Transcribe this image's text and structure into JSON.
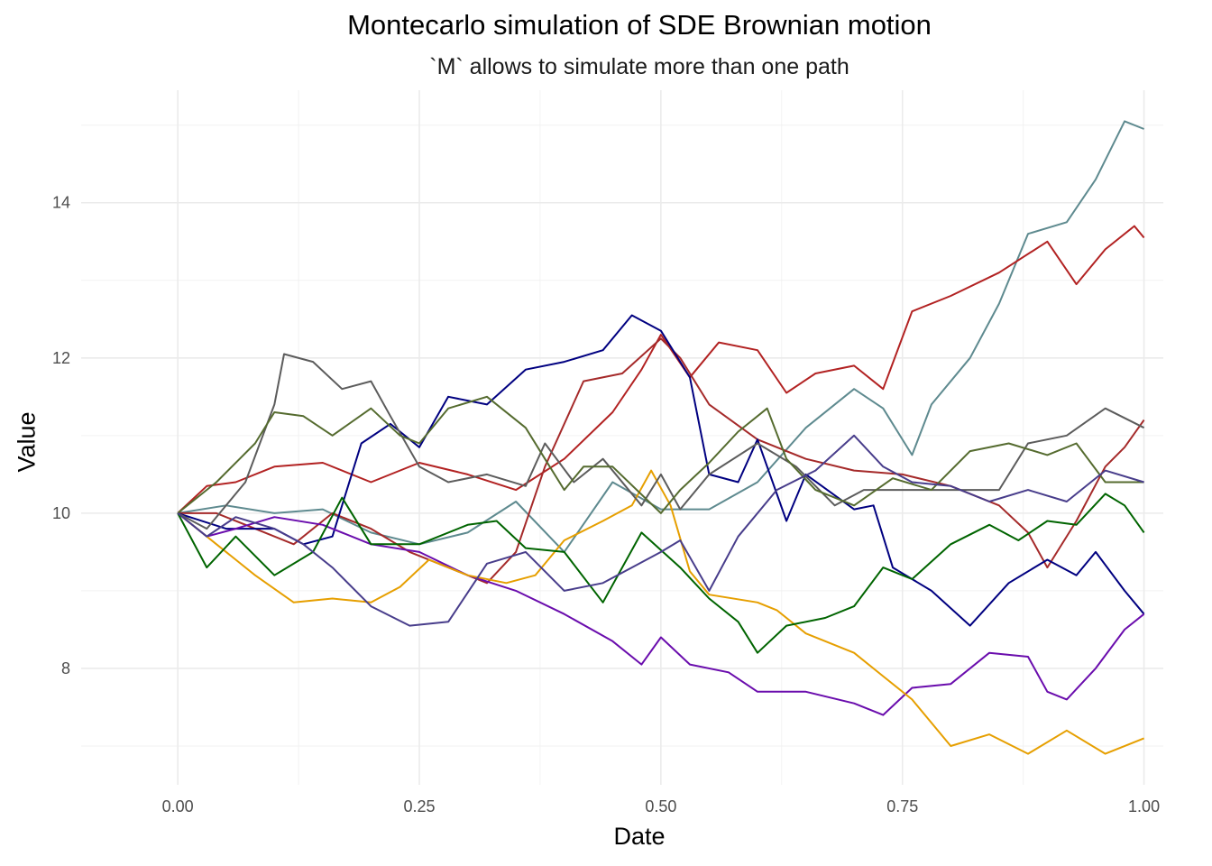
{
  "chart_data": {
    "type": "line",
    "title": "Montecarlo simulation of SDE Brownian motion",
    "subtitle": "`M` allows to simulate more than one path",
    "xlabel": "Date",
    "ylabel": "Value",
    "xlim": [
      -0.1,
      1.02
    ],
    "ylim": [
      6.5,
      15.45
    ],
    "x_ticks": [
      0.0,
      0.25,
      0.5,
      0.75,
      1.0
    ],
    "x_tick_labels": [
      "0.00",
      "0.25",
      "0.50",
      "0.75",
      "1.00"
    ],
    "y_ticks": [
      8,
      10,
      12,
      14
    ],
    "y_tick_labels": [
      "8",
      "10",
      "12",
      "14"
    ],
    "grid": true,
    "legend": "none",
    "series": [
      {
        "color": "#5e8a8f",
        "points": [
          [
            0,
            10
          ],
          [
            0.05,
            10.1
          ],
          [
            0.1,
            10
          ],
          [
            0.15,
            10.05
          ],
          [
            0.2,
            9.75
          ],
          [
            0.25,
            9.6
          ],
          [
            0.3,
            9.75
          ],
          [
            0.35,
            10.15
          ],
          [
            0.4,
            9.5
          ],
          [
            0.45,
            10.4
          ],
          [
            0.5,
            10.05
          ],
          [
            0.55,
            10.05
          ],
          [
            0.6,
            10.4
          ],
          [
            0.65,
            11.1
          ],
          [
            0.7,
            11.6
          ],
          [
            0.73,
            11.35
          ],
          [
            0.76,
            10.75
          ],
          [
            0.78,
            11.4
          ],
          [
            0.82,
            12
          ],
          [
            0.85,
            12.7
          ],
          [
            0.88,
            13.6
          ],
          [
            0.92,
            13.75
          ],
          [
            0.95,
            14.3
          ],
          [
            0.98,
            15.05
          ],
          [
            1,
            14.95
          ]
        ]
      },
      {
        "color": "#b22222",
        "points": [
          [
            0,
            10
          ],
          [
            0.03,
            10.35
          ],
          [
            0.06,
            10.4
          ],
          [
            0.1,
            10.6
          ],
          [
            0.15,
            10.65
          ],
          [
            0.2,
            10.4
          ],
          [
            0.25,
            10.65
          ],
          [
            0.3,
            10.5
          ],
          [
            0.35,
            10.3
          ],
          [
            0.4,
            10.7
          ],
          [
            0.45,
            11.3
          ],
          [
            0.48,
            11.85
          ],
          [
            0.5,
            12.3
          ],
          [
            0.53,
            11.75
          ],
          [
            0.56,
            12.2
          ],
          [
            0.6,
            12.1
          ],
          [
            0.63,
            11.55
          ],
          [
            0.66,
            11.8
          ],
          [
            0.7,
            11.9
          ],
          [
            0.73,
            11.6
          ],
          [
            0.76,
            12.6
          ],
          [
            0.8,
            12.8
          ],
          [
            0.85,
            13.1
          ],
          [
            0.9,
            13.5
          ],
          [
            0.93,
            12.95
          ],
          [
            0.96,
            13.4
          ],
          [
            0.99,
            13.7
          ],
          [
            1,
            13.55
          ]
        ]
      },
      {
        "color": "#a52a2a",
        "points": [
          [
            0,
            10
          ],
          [
            0.04,
            10
          ],
          [
            0.08,
            9.8
          ],
          [
            0.12,
            9.6
          ],
          [
            0.16,
            10
          ],
          [
            0.2,
            9.8
          ],
          [
            0.24,
            9.5
          ],
          [
            0.28,
            9.3
          ],
          [
            0.32,
            9.1
          ],
          [
            0.35,
            9.5
          ],
          [
            0.38,
            10.6
          ],
          [
            0.42,
            11.7
          ],
          [
            0.46,
            11.8
          ],
          [
            0.5,
            12.25
          ],
          [
            0.52,
            12
          ],
          [
            0.55,
            11.4
          ],
          [
            0.6,
            10.95
          ],
          [
            0.65,
            10.7
          ],
          [
            0.7,
            10.55
          ],
          [
            0.75,
            10.5
          ],
          [
            0.8,
            10.35
          ],
          [
            0.85,
            10.1
          ],
          [
            0.88,
            9.75
          ],
          [
            0.9,
            9.3
          ],
          [
            0.93,
            9.9
          ],
          [
            0.96,
            10.6
          ],
          [
            0.98,
            10.85
          ],
          [
            1,
            11.2
          ]
        ]
      },
      {
        "color": "#000080",
        "points": [
          [
            0,
            10
          ],
          [
            0.05,
            9.8
          ],
          [
            0.1,
            9.8
          ],
          [
            0.13,
            9.6
          ],
          [
            0.16,
            9.7
          ],
          [
            0.19,
            10.9
          ],
          [
            0.22,
            11.15
          ],
          [
            0.25,
            10.85
          ],
          [
            0.28,
            11.5
          ],
          [
            0.32,
            11.4
          ],
          [
            0.36,
            11.85
          ],
          [
            0.4,
            11.95
          ],
          [
            0.44,
            12.1
          ],
          [
            0.47,
            12.55
          ],
          [
            0.5,
            12.35
          ],
          [
            0.53,
            11.75
          ],
          [
            0.55,
            10.5
          ],
          [
            0.58,
            10.4
          ],
          [
            0.6,
            10.95
          ],
          [
            0.63,
            9.9
          ],
          [
            0.65,
            10.5
          ],
          [
            0.7,
            10.05
          ],
          [
            0.72,
            10.1
          ],
          [
            0.74,
            9.3
          ],
          [
            0.78,
            9.0
          ],
          [
            0.82,
            8.55
          ],
          [
            0.86,
            9.1
          ],
          [
            0.9,
            9.4
          ],
          [
            0.93,
            9.2
          ],
          [
            0.95,
            9.5
          ],
          [
            0.98,
            9.0
          ],
          [
            1,
            8.7
          ]
        ]
      },
      {
        "color": "#6a0dad",
        "points": [
          [
            0,
            10
          ],
          [
            0.03,
            9.7
          ],
          [
            0.06,
            9.8
          ],
          [
            0.1,
            9.95
          ],
          [
            0.15,
            9.85
          ],
          [
            0.2,
            9.6
          ],
          [
            0.25,
            9.5
          ],
          [
            0.3,
            9.2
          ],
          [
            0.35,
            9.0
          ],
          [
            0.4,
            8.7
          ],
          [
            0.45,
            8.35
          ],
          [
            0.48,
            8.05
          ],
          [
            0.5,
            8.4
          ],
          [
            0.53,
            8.05
          ],
          [
            0.57,
            7.95
          ],
          [
            0.6,
            7.7
          ],
          [
            0.65,
            7.7
          ],
          [
            0.7,
            7.55
          ],
          [
            0.73,
            7.4
          ],
          [
            0.76,
            7.75
          ],
          [
            0.8,
            7.8
          ],
          [
            0.84,
            8.2
          ],
          [
            0.88,
            8.15
          ],
          [
            0.9,
            7.7
          ],
          [
            0.92,
            7.6
          ],
          [
            0.95,
            8.0
          ],
          [
            0.98,
            8.5
          ],
          [
            1,
            8.7
          ]
        ]
      },
      {
        "color": "#e69f00",
        "points": [
          [
            0,
            10
          ],
          [
            0.04,
            9.6
          ],
          [
            0.08,
            9.2
          ],
          [
            0.12,
            8.85
          ],
          [
            0.16,
            8.9
          ],
          [
            0.2,
            8.85
          ],
          [
            0.23,
            9.05
          ],
          [
            0.26,
            9.4
          ],
          [
            0.3,
            9.2
          ],
          [
            0.34,
            9.1
          ],
          [
            0.37,
            9.2
          ],
          [
            0.4,
            9.65
          ],
          [
            0.44,
            9.9
          ],
          [
            0.47,
            10.1
          ],
          [
            0.49,
            10.55
          ],
          [
            0.51,
            10.1
          ],
          [
            0.53,
            9.25
          ],
          [
            0.55,
            8.95
          ],
          [
            0.6,
            8.85
          ],
          [
            0.62,
            8.75
          ],
          [
            0.65,
            8.45
          ],
          [
            0.7,
            8.2
          ],
          [
            0.73,
            7.9
          ],
          [
            0.76,
            7.6
          ],
          [
            0.8,
            7.0
          ],
          [
            0.84,
            7.15
          ],
          [
            0.88,
            6.9
          ],
          [
            0.92,
            7.2
          ],
          [
            0.96,
            6.9
          ],
          [
            1,
            7.1
          ]
        ]
      },
      {
        "color": "#006400",
        "points": [
          [
            0,
            10
          ],
          [
            0.03,
            9.3
          ],
          [
            0.06,
            9.7
          ],
          [
            0.1,
            9.2
          ],
          [
            0.14,
            9.5
          ],
          [
            0.17,
            10.2
          ],
          [
            0.2,
            9.6
          ],
          [
            0.25,
            9.6
          ],
          [
            0.3,
            9.85
          ],
          [
            0.33,
            9.9
          ],
          [
            0.36,
            9.55
          ],
          [
            0.4,
            9.5
          ],
          [
            0.44,
            8.85
          ],
          [
            0.48,
            9.75
          ],
          [
            0.52,
            9.3
          ],
          [
            0.55,
            8.9
          ],
          [
            0.58,
            8.6
          ],
          [
            0.6,
            8.2
          ],
          [
            0.63,
            8.55
          ],
          [
            0.67,
            8.65
          ],
          [
            0.7,
            8.8
          ],
          [
            0.73,
            9.3
          ],
          [
            0.76,
            9.15
          ],
          [
            0.8,
            9.6
          ],
          [
            0.84,
            9.85
          ],
          [
            0.87,
            9.65
          ],
          [
            0.9,
            9.9
          ],
          [
            0.93,
            9.85
          ],
          [
            0.96,
            10.25
          ],
          [
            0.98,
            10.1
          ],
          [
            1,
            9.75
          ]
        ]
      },
      {
        "color": "#5c5c5c",
        "points": [
          [
            0,
            10
          ],
          [
            0.03,
            9.8
          ],
          [
            0.07,
            10.4
          ],
          [
            0.1,
            11.4
          ],
          [
            0.11,
            12.05
          ],
          [
            0.14,
            11.95
          ],
          [
            0.17,
            11.6
          ],
          [
            0.2,
            11.7
          ],
          [
            0.22,
            11.25
          ],
          [
            0.25,
            10.6
          ],
          [
            0.28,
            10.4
          ],
          [
            0.32,
            10.5
          ],
          [
            0.36,
            10.35
          ],
          [
            0.38,
            10.9
          ],
          [
            0.41,
            10.4
          ],
          [
            0.44,
            10.7
          ],
          [
            0.48,
            10.1
          ],
          [
            0.5,
            10.5
          ],
          [
            0.52,
            10.05
          ],
          [
            0.55,
            10.5
          ],
          [
            0.6,
            10.9
          ],
          [
            0.64,
            10.6
          ],
          [
            0.68,
            10.1
          ],
          [
            0.71,
            10.3
          ],
          [
            0.75,
            10.3
          ],
          [
            0.8,
            10.3
          ],
          [
            0.85,
            10.3
          ],
          [
            0.88,
            10.9
          ],
          [
            0.92,
            11.0
          ],
          [
            0.96,
            11.35
          ],
          [
            1,
            11.1
          ]
        ]
      },
      {
        "color": "#556b2f",
        "points": [
          [
            0,
            10
          ],
          [
            0.04,
            10.4
          ],
          [
            0.08,
            10.9
          ],
          [
            0.1,
            11.3
          ],
          [
            0.13,
            11.25
          ],
          [
            0.16,
            11.0
          ],
          [
            0.2,
            11.35
          ],
          [
            0.23,
            11.0
          ],
          [
            0.25,
            10.9
          ],
          [
            0.28,
            11.35
          ],
          [
            0.32,
            11.5
          ],
          [
            0.36,
            11.1
          ],
          [
            0.38,
            10.7
          ],
          [
            0.4,
            10.3
          ],
          [
            0.42,
            10.6
          ],
          [
            0.45,
            10.6
          ],
          [
            0.5,
            10.0
          ],
          [
            0.52,
            10.3
          ],
          [
            0.55,
            10.65
          ],
          [
            0.58,
            11.05
          ],
          [
            0.61,
            11.35
          ],
          [
            0.63,
            10.7
          ],
          [
            0.66,
            10.3
          ],
          [
            0.7,
            10.1
          ],
          [
            0.74,
            10.45
          ],
          [
            0.78,
            10.3
          ],
          [
            0.82,
            10.8
          ],
          [
            0.86,
            10.9
          ],
          [
            0.9,
            10.75
          ],
          [
            0.93,
            10.9
          ],
          [
            0.96,
            10.4
          ],
          [
            1,
            10.4
          ]
        ]
      },
      {
        "color": "#483d8b",
        "points": [
          [
            0,
            10
          ],
          [
            0.03,
            9.7
          ],
          [
            0.06,
            9.95
          ],
          [
            0.1,
            9.8
          ],
          [
            0.13,
            9.6
          ],
          [
            0.16,
            9.3
          ],
          [
            0.2,
            8.8
          ],
          [
            0.24,
            8.55
          ],
          [
            0.28,
            8.6
          ],
          [
            0.32,
            9.35
          ],
          [
            0.36,
            9.5
          ],
          [
            0.4,
            9.0
          ],
          [
            0.44,
            9.1
          ],
          [
            0.47,
            9.3
          ],
          [
            0.5,
            9.5
          ],
          [
            0.52,
            9.65
          ],
          [
            0.55,
            9.0
          ],
          [
            0.58,
            9.7
          ],
          [
            0.62,
            10.3
          ],
          [
            0.66,
            10.55
          ],
          [
            0.7,
            11.0
          ],
          [
            0.73,
            10.6
          ],
          [
            0.76,
            10.4
          ],
          [
            0.8,
            10.35
          ],
          [
            0.84,
            10.15
          ],
          [
            0.88,
            10.3
          ],
          [
            0.92,
            10.15
          ],
          [
            0.96,
            10.55
          ],
          [
            1,
            10.4
          ]
        ]
      }
    ]
  }
}
